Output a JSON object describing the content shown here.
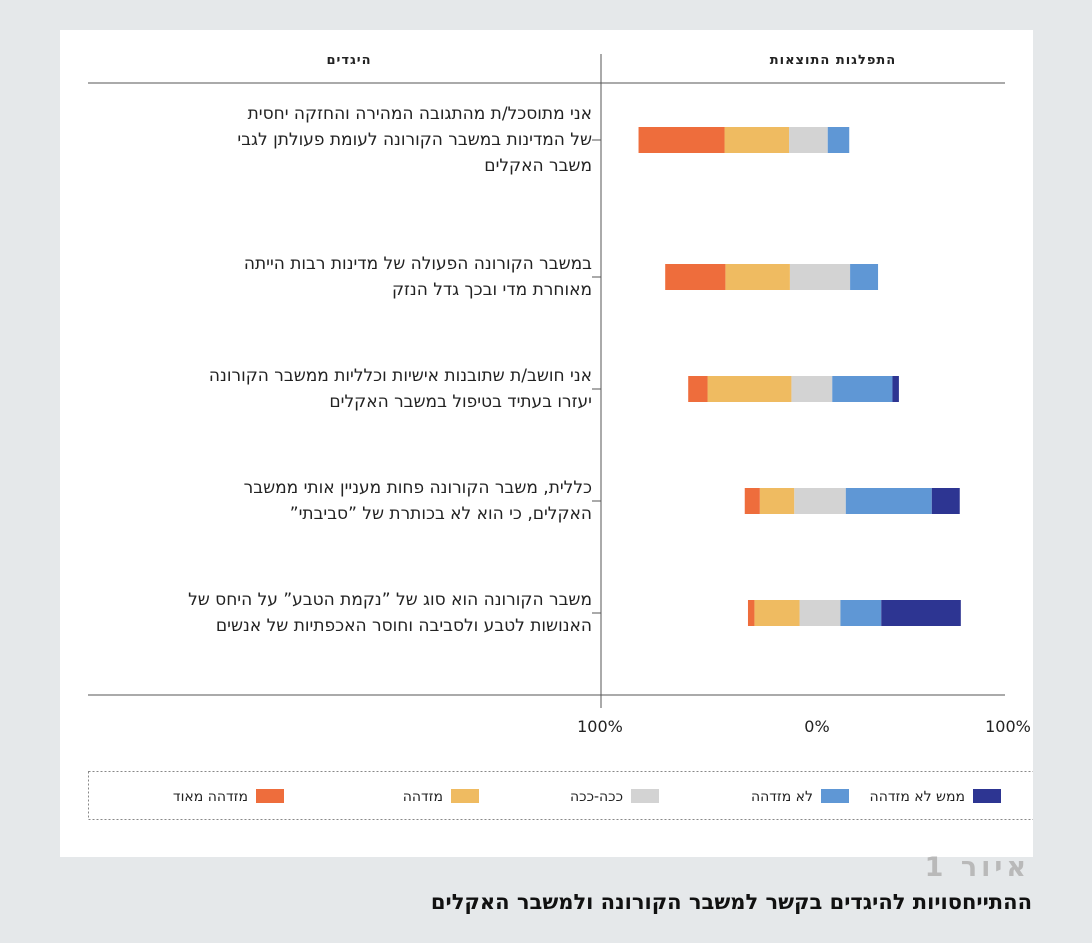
{
  "chart_data": {
    "type": "bar",
    "stacked": "diverging",
    "header_distribution": "התפלגות התוצאות",
    "header_statements": "היגדים",
    "categories": [
      [
        "אני מתוסכל/ת מהתגובה המהירה והחזקה יחסית",
        "של המדינות במשבר הקורונה לעומת פעולתן לגבי",
        "משבר האקלים"
      ],
      [
        "במשבר הקורונה הפעולה של מדינות רבות הייתה",
        "מאוחרת מדי ובכך גדל הנזק"
      ],
      [
        "אני חושב/ת שתובנות אישיות וכלליות ממשבר הקורונה",
        "יעזרו בעתיד בטיפול במשבר האקלים"
      ],
      [
        "כללית, משבר הקורונה פחות מעניין אותי ממשבר",
        "האקלים, כי הוא לא בכותרת של ”סביבתי”"
      ],
      [
        "משבר הקורונה הוא סוג של ”נקמת הטבע” על היחס של",
        "האנושות לטבע ולסביבה וחוסר האכפתיות של אנשים"
      ]
    ],
    "series": [
      {
        "name": "מזדהה מאוד",
        "color": "#ee6d3c",
        "values": [
          40,
          28,
          9,
          7,
          3
        ]
      },
      {
        "name": "מזדהה",
        "color": "#efbb61",
        "values": [
          30,
          30,
          39,
          16,
          21
        ]
      },
      {
        "name": "ככה-ככה",
        "color": "#d3d3d3",
        "values": [
          18,
          28,
          19,
          24,
          19
        ]
      },
      {
        "name": "לא מזדהה",
        "color": "#5f97d5",
        "values": [
          10,
          13,
          28,
          40,
          19
        ]
      },
      {
        "name": "ממש לא מזדהה",
        "color": "#2d3592",
        "values": [
          0,
          0,
          3,
          13,
          37
        ]
      }
    ],
    "neutral_split": [
      0.8,
      0.5,
      0.7,
      0.5,
      0.5
    ],
    "xlim": [
      -100,
      100
    ],
    "xticks": [
      "100%",
      "0%",
      "100%"
    ],
    "legend_position": "bottom",
    "legend_order": [
      "ממש לא מזדהה",
      "לא מזדהה",
      "ככה-ככה",
      "מזדהה",
      "מזדהה מאוד"
    ]
  },
  "figure": {
    "number": "איור 1",
    "title": "ההתייחסויות להיגדים בקשר למשבר הקורונה ולמשבר האקלים"
  }
}
